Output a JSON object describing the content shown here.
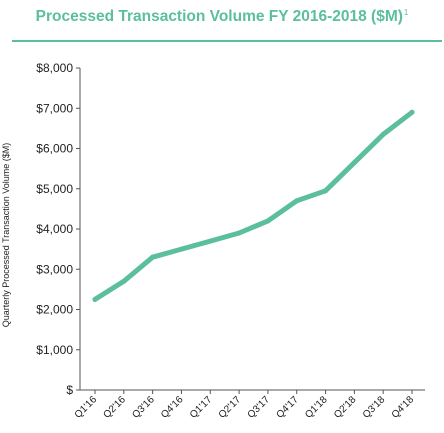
{
  "title": {
    "text": "Processed Transaction Volume FY 2016-2018 ($M)",
    "footnote": "1"
  },
  "colors": {
    "accent": "#5BBF9B",
    "line": "#5BBF9B",
    "axis": "#555555",
    "text": "#222222"
  },
  "chart_data": {
    "type": "line",
    "title": "Processed Transaction Volume FY 2016-2018 ($M)",
    "xlabel": "",
    "ylabel": "Quarterly Processed Transaction Volume ($M)",
    "ylim": [
      0,
      8000
    ],
    "grid": false,
    "yticks": [
      {
        "value": 0,
        "label": "$"
      },
      {
        "value": 1000,
        "label": "$1,000"
      },
      {
        "value": 2000,
        "label": "$2,000"
      },
      {
        "value": 3000,
        "label": "$3,000"
      },
      {
        "value": 4000,
        "label": "$4,000"
      },
      {
        "value": 5000,
        "label": "$5,000"
      },
      {
        "value": 6000,
        "label": "$6,000"
      },
      {
        "value": 7000,
        "label": "$7,000"
      },
      {
        "value": 8000,
        "label": "$8,000"
      }
    ],
    "categories": [
      "Q1'16",
      "Q2'16",
      "Q3'16",
      "Q4'16",
      "Q1'17",
      "Q2'17",
      "Q3'17",
      "Q4'17",
      "Q1'18",
      "Q2'18",
      "Q3'18",
      "Q4'18"
    ],
    "series": [
      {
        "values": [
          2250,
          2700,
          3300,
          3500,
          3700,
          3900,
          4200,
          4700,
          4950,
          5650,
          6350,
          6900
        ]
      }
    ]
  }
}
